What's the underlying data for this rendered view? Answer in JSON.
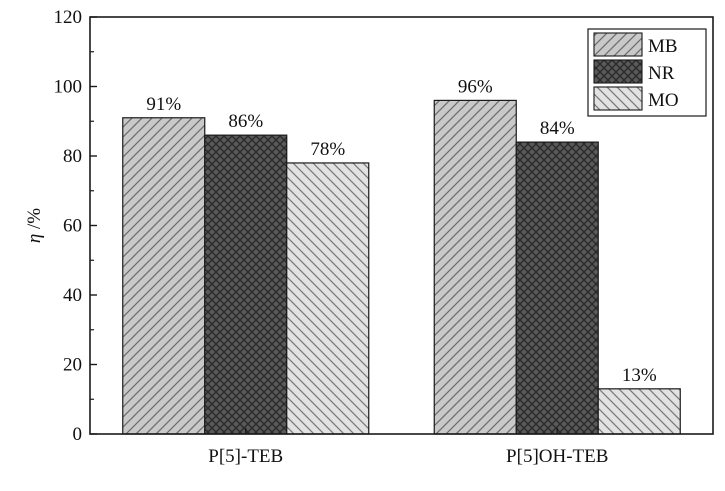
{
  "chart_data": {
    "type": "bar",
    "title": "",
    "xlabel": "",
    "ylabel": "η /%",
    "ylim": [
      0,
      120
    ],
    "yticks": [
      0,
      20,
      40,
      60,
      80,
      100,
      120
    ],
    "categories": [
      "P[5]-TEB",
      "P[5]OH-TEB"
    ],
    "series": [
      {
        "name": "MB",
        "values": [
          91,
          96
        ],
        "labels": [
          "91%",
          "96%"
        ],
        "pattern": "hatch-forward",
        "fill": "#c9c9c9"
      },
      {
        "name": "NR",
        "values": [
          86,
          84
        ],
        "labels": [
          "86%",
          "84%"
        ],
        "pattern": "crosshatch",
        "fill": "#5a5a5a"
      },
      {
        "name": "MO",
        "values": [
          78,
          13
        ],
        "labels": [
          "78%",
          "13%"
        ],
        "pattern": "hatch-back",
        "fill": "#e2e2e2"
      }
    ],
    "legend_position": "top-right",
    "grid": false
  }
}
